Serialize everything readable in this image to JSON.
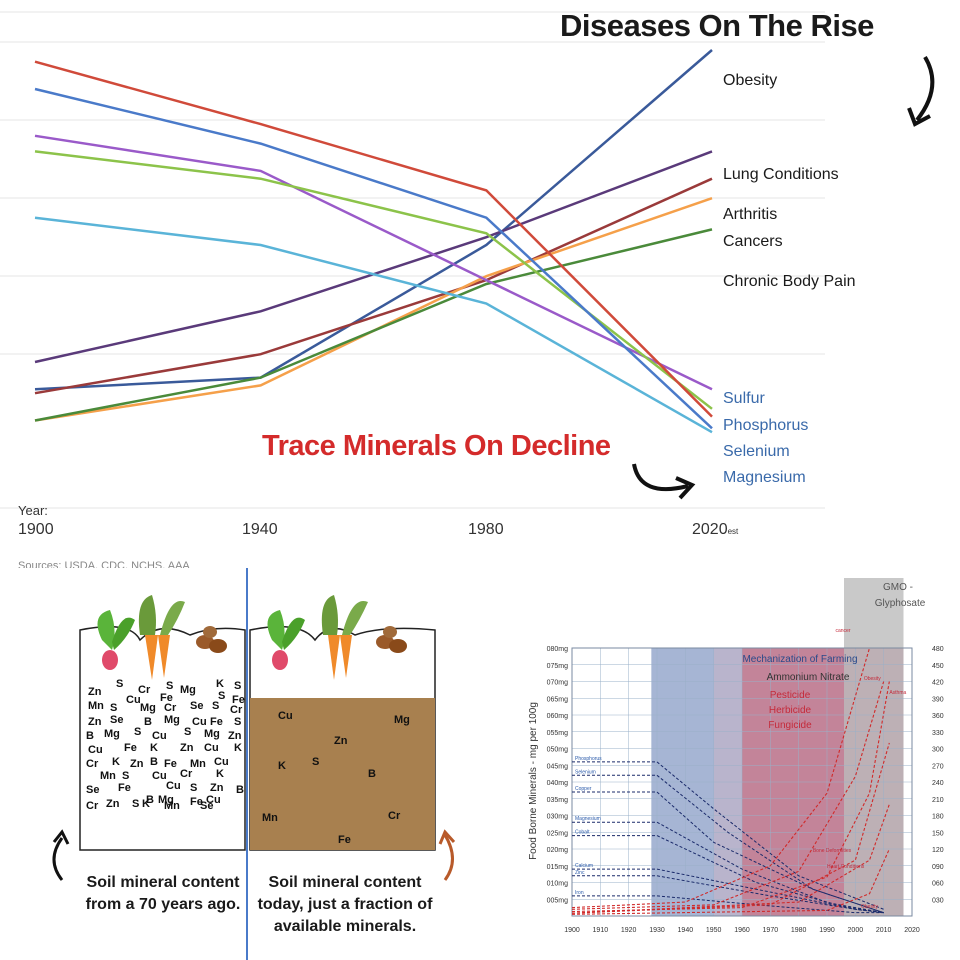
{
  "chart_data": [
    {
      "type": "line",
      "title": "Diseases On The Rise",
      "subtitle": "Trace Minerals On Decline",
      "xlabel": "Year:",
      "x_ticks": [
        "1900",
        "1940",
        "1980",
        "2020"
      ],
      "x_tick_suffix": "est",
      "x": [
        1900,
        1940,
        1980,
        2020
      ],
      "ylim": [
        0,
        100
      ],
      "grid": true,
      "source": "Sources: USDA, CDC, NCHS, AAA",
      "series": [
        {
          "name": "Obesity",
          "color": "#3a5a9a",
          "group": "disease",
          "values": [
            13,
            16,
            50,
            100
          ]
        },
        {
          "name": "Lung Conditions",
          "color": "#5a3a7a",
          "group": "disease",
          "values": [
            20,
            33,
            52,
            74
          ]
        },
        {
          "name": "Arthritis",
          "color": "#9a3a3a",
          "group": "disease",
          "values": [
            12,
            22,
            41,
            67
          ]
        },
        {
          "name": "Cancers",
          "color": "#f5a04a",
          "group": "disease",
          "values": [
            5,
            14,
            42,
            62
          ]
        },
        {
          "name": "Chronic Body Pain",
          "color": "#4a8a3a",
          "group": "disease",
          "values": [
            5,
            16,
            40,
            54
          ]
        },
        {
          "name": "Sulfur",
          "color": "#9a5ac9",
          "group": "mineral",
          "values": [
            78,
            69,
            41,
            13
          ]
        },
        {
          "name": "Phosphorus",
          "color": "#8cc34a",
          "group": "mineral",
          "values": [
            74,
            67,
            53,
            8
          ]
        },
        {
          "name": "Selenium",
          "color": "#5ab4d8",
          "group": "mineral",
          "values": [
            57,
            50,
            35,
            2
          ]
        },
        {
          "name": "Magnesium",
          "color": "#d04a3a",
          "group": "mineral",
          "values": [
            97,
            81,
            64,
            6
          ]
        },
        {
          "name": "",
          "color": "#4a7ac9",
          "group": "mineral",
          "values": [
            90,
            76,
            57,
            3
          ]
        }
      ]
    },
    {
      "type": "line",
      "title": "",
      "ylabel": "Food Borne Minerals - mg per 100g",
      "x_ticks": [
        "1900",
        "1910",
        "1920",
        "1930",
        "1940",
        "1950",
        "1960",
        "1970",
        "1980",
        "1990",
        "2000",
        "2010",
        "2020"
      ],
      "y_ticks_left": [
        "080mg",
        "075mg",
        "070mg",
        "065mg",
        "060mg",
        "055mg",
        "050mg",
        "045mg",
        "040mg",
        "035mg",
        "030mg",
        "025mg",
        "020mg",
        "015mg",
        "010mg",
        "005mg"
      ],
      "y_ticks_right": [
        "480",
        "450",
        "420",
        "390",
        "360",
        "330",
        "300",
        "270",
        "240",
        "210",
        "180",
        "150",
        "120",
        "090",
        "060",
        "030"
      ],
      "bands": [
        {
          "label": "Mechanization of Farming",
          "from": 1928,
          "to": 2020,
          "color": "#3a5aa0"
        },
        {
          "label": "Ammonium Nitrate",
          "from": 1950,
          "to": 2020,
          "color": "#b5a8c4"
        },
        {
          "label": "Pesticide",
          "from": 1960,
          "to": 2020,
          "color": "#d04a5a"
        },
        {
          "label": "Herbicide",
          "from": 1960,
          "to": 2020,
          "color": "#d04a5a"
        },
        {
          "label": "Fungicide",
          "from": 1960,
          "to": 2020,
          "color": "#d04a5a"
        },
        {
          "label": "GMO - Glyphosate",
          "from": 1996,
          "to": 2020,
          "color": "#bbbbbb"
        }
      ],
      "minerals": [
        {
          "name": "Phosphorus",
          "values": [
            [
              1900,
              46
            ],
            [
              1930,
              46
            ],
            [
              1950,
              32
            ],
            [
              1980,
              12
            ],
            [
              2010,
              2
            ]
          ]
        },
        {
          "name": "Selenium",
          "values": [
            [
              1900,
              42
            ],
            [
              1930,
              42
            ],
            [
              1955,
              25
            ],
            [
              1985,
              8
            ],
            [
              2010,
              1
            ]
          ]
        },
        {
          "name": "Copper",
          "values": [
            [
              1900,
              37
            ],
            [
              1930,
              37
            ],
            [
              1950,
              22
            ],
            [
              1985,
              8
            ],
            [
              2010,
              1
            ]
          ]
        },
        {
          "name": "Magnesium",
          "values": [
            [
              1900,
              28
            ],
            [
              1930,
              28
            ],
            [
              1960,
              14
            ],
            [
              1990,
              4
            ],
            [
              2010,
              1
            ]
          ]
        },
        {
          "name": "Cobalt",
          "values": [
            [
              1900,
              24
            ],
            [
              1930,
              24
            ],
            [
              1965,
              10
            ],
            [
              1995,
              3
            ],
            [
              2010,
              1
            ]
          ]
        },
        {
          "name": "Calcium",
          "values": [
            [
              1900,
              14
            ],
            [
              1930,
              14
            ],
            [
              1965,
              8
            ],
            [
              2000,
              2
            ],
            [
              2010,
              1
            ]
          ]
        },
        {
          "name": "Zinc",
          "values": [
            [
              1900,
              12
            ],
            [
              1930,
              12
            ],
            [
              1970,
              6
            ],
            [
              2000,
              2
            ],
            [
              2010,
              1
            ]
          ]
        },
        {
          "name": "Iron",
          "values": [
            [
              1900,
              6
            ],
            [
              1930,
              6
            ],
            [
              1970,
              3
            ],
            [
              2000,
              1
            ],
            [
              2010,
              1
            ]
          ]
        }
      ],
      "diseases": [
        {
          "name": "cancer",
          "values": [
            [
              1900,
              15
            ],
            [
              1940,
              25
            ],
            [
              1970,
              90
            ],
            [
              1990,
              220
            ],
            [
              2005,
              480
            ]
          ]
        },
        {
          "name": "Obesity",
          "values": [
            [
              1900,
              12
            ],
            [
              1950,
              20
            ],
            [
              1980,
              80
            ],
            [
              2000,
              250
            ],
            [
              2010,
              420
            ]
          ]
        },
        {
          "name": "Asthma",
          "values": [
            [
              1900,
              8
            ],
            [
              1960,
              15
            ],
            [
              1990,
              70
            ],
            [
              2005,
              220
            ],
            [
              2012,
              420
            ]
          ]
        },
        {
          "name": "Bone Deformities",
          "values": [
            [
              1900,
              5
            ],
            [
              1970,
              20
            ],
            [
              2000,
              100
            ],
            [
              2012,
              310
            ]
          ]
        },
        {
          "name": "Heart Conditions",
          "values": [
            [
              1900,
              5
            ],
            [
              1980,
              25
            ],
            [
              2005,
              100
            ],
            [
              2012,
              200
            ]
          ]
        },
        {
          "name": "Obesity_2",
          "values": [
            [
              1900,
              3
            ],
            [
              1990,
              10
            ],
            [
              2005,
              40
            ],
            [
              2012,
              120
            ]
          ]
        }
      ],
      "series_labels": {
        "minerals": [
          "Phosphorus",
          "Selenium",
          "Copper",
          "Magnesium",
          "Cobalt",
          "Calcium",
          "Zinc",
          "Iron"
        ],
        "diseases": [
          "cancer",
          "Obesity",
          "Asthma",
          "Bone Deformities",
          "Heart Conditions",
          "Obesity"
        ]
      }
    }
  ],
  "soil": {
    "left_caption": "Soil mineral content from a 70 years ago.",
    "right_caption": "Soil mineral content today, just a fraction of available minerals.",
    "old_minerals": [
      "Zn",
      "S",
      "Cr",
      "S",
      "Mg",
      "K",
      "S",
      "Cu",
      "Fe",
      "S",
      "Fe",
      "Mn",
      "S",
      "Mg",
      "Cr",
      "Se",
      "S",
      "Cr",
      "Zn",
      "Se",
      "B",
      "Mg",
      "Cu",
      "Fe",
      "S",
      "B",
      "Mg",
      "S",
      "Cu",
      "S",
      "Mg",
      "Zn",
      "Cu",
      "Fe",
      "K",
      "Zn",
      "Cu",
      "K",
      "Cr",
      "K",
      "Zn",
      "B",
      "Fe",
      "Mn",
      "Cu",
      "Mn",
      "S",
      "Cu",
      "Cr",
      "K",
      "Se",
      "Fe",
      "Cu",
      "S",
      "Zn",
      "B",
      "Mg",
      "B",
      "Fe",
      "Cu",
      "Cr",
      "Zn",
      "S",
      "K",
      "Mn",
      "Se"
    ],
    "new_minerals": [
      "Cu",
      "Mg",
      "Zn",
      "K",
      "S",
      "B",
      "Cr",
      "Mn",
      "Fe"
    ]
  }
}
